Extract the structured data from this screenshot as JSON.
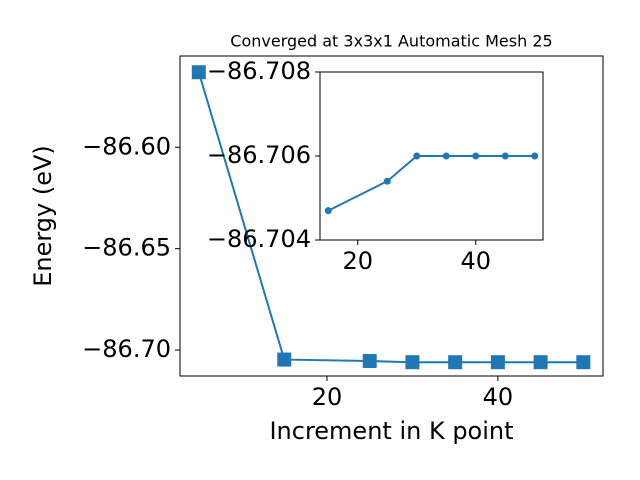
{
  "chart_data": [
    {
      "type": "line",
      "title": "Converged at 3x3x1 Automatic Mesh 25",
      "xlabel": "Increment in K point",
      "ylabel": "Energy (eV)",
      "x": [
        5,
        15,
        25,
        30,
        35,
        40,
        45,
        50
      ],
      "series": [
        {
          "color": "#1f77b4",
          "marker": "square",
          "values": [
            -86.563,
            -86.7047,
            -86.7054,
            -86.706,
            -86.706,
            -86.706,
            -86.706,
            -86.706
          ]
        }
      ],
      "xlim": [
        2.8,
        52.3
      ],
      "ylim": [
        -86.7128,
        -86.555
      ],
      "xticks": [
        20,
        40
      ],
      "yticks": [
        {
          "value": -86.6,
          "label": "−86.60"
        },
        {
          "value": -86.65,
          "label": "−86.65"
        },
        {
          "value": -86.7,
          "label": "−86.70"
        }
      ]
    },
    {
      "type": "line",
      "x": [
        15,
        25,
        30,
        35,
        40,
        45,
        50
      ],
      "series": [
        {
          "color": "#1f77b4",
          "marker": "circle",
          "values": [
            -86.7047,
            -86.7054,
            -86.706,
            -86.706,
            -86.706,
            -86.706,
            -86.706
          ]
        }
      ],
      "xlim": [
        13.6,
        51.4
      ],
      "ylim": [
        -86.704,
        -86.708
      ],
      "xticks": [
        20,
        40
      ],
      "yticks": [
        {
          "value": -86.708,
          "label": "−86.708"
        },
        {
          "value": -86.706,
          "label": "−86.706"
        },
        {
          "value": -86.704,
          "label": "−86.704"
        }
      ]
    }
  ]
}
